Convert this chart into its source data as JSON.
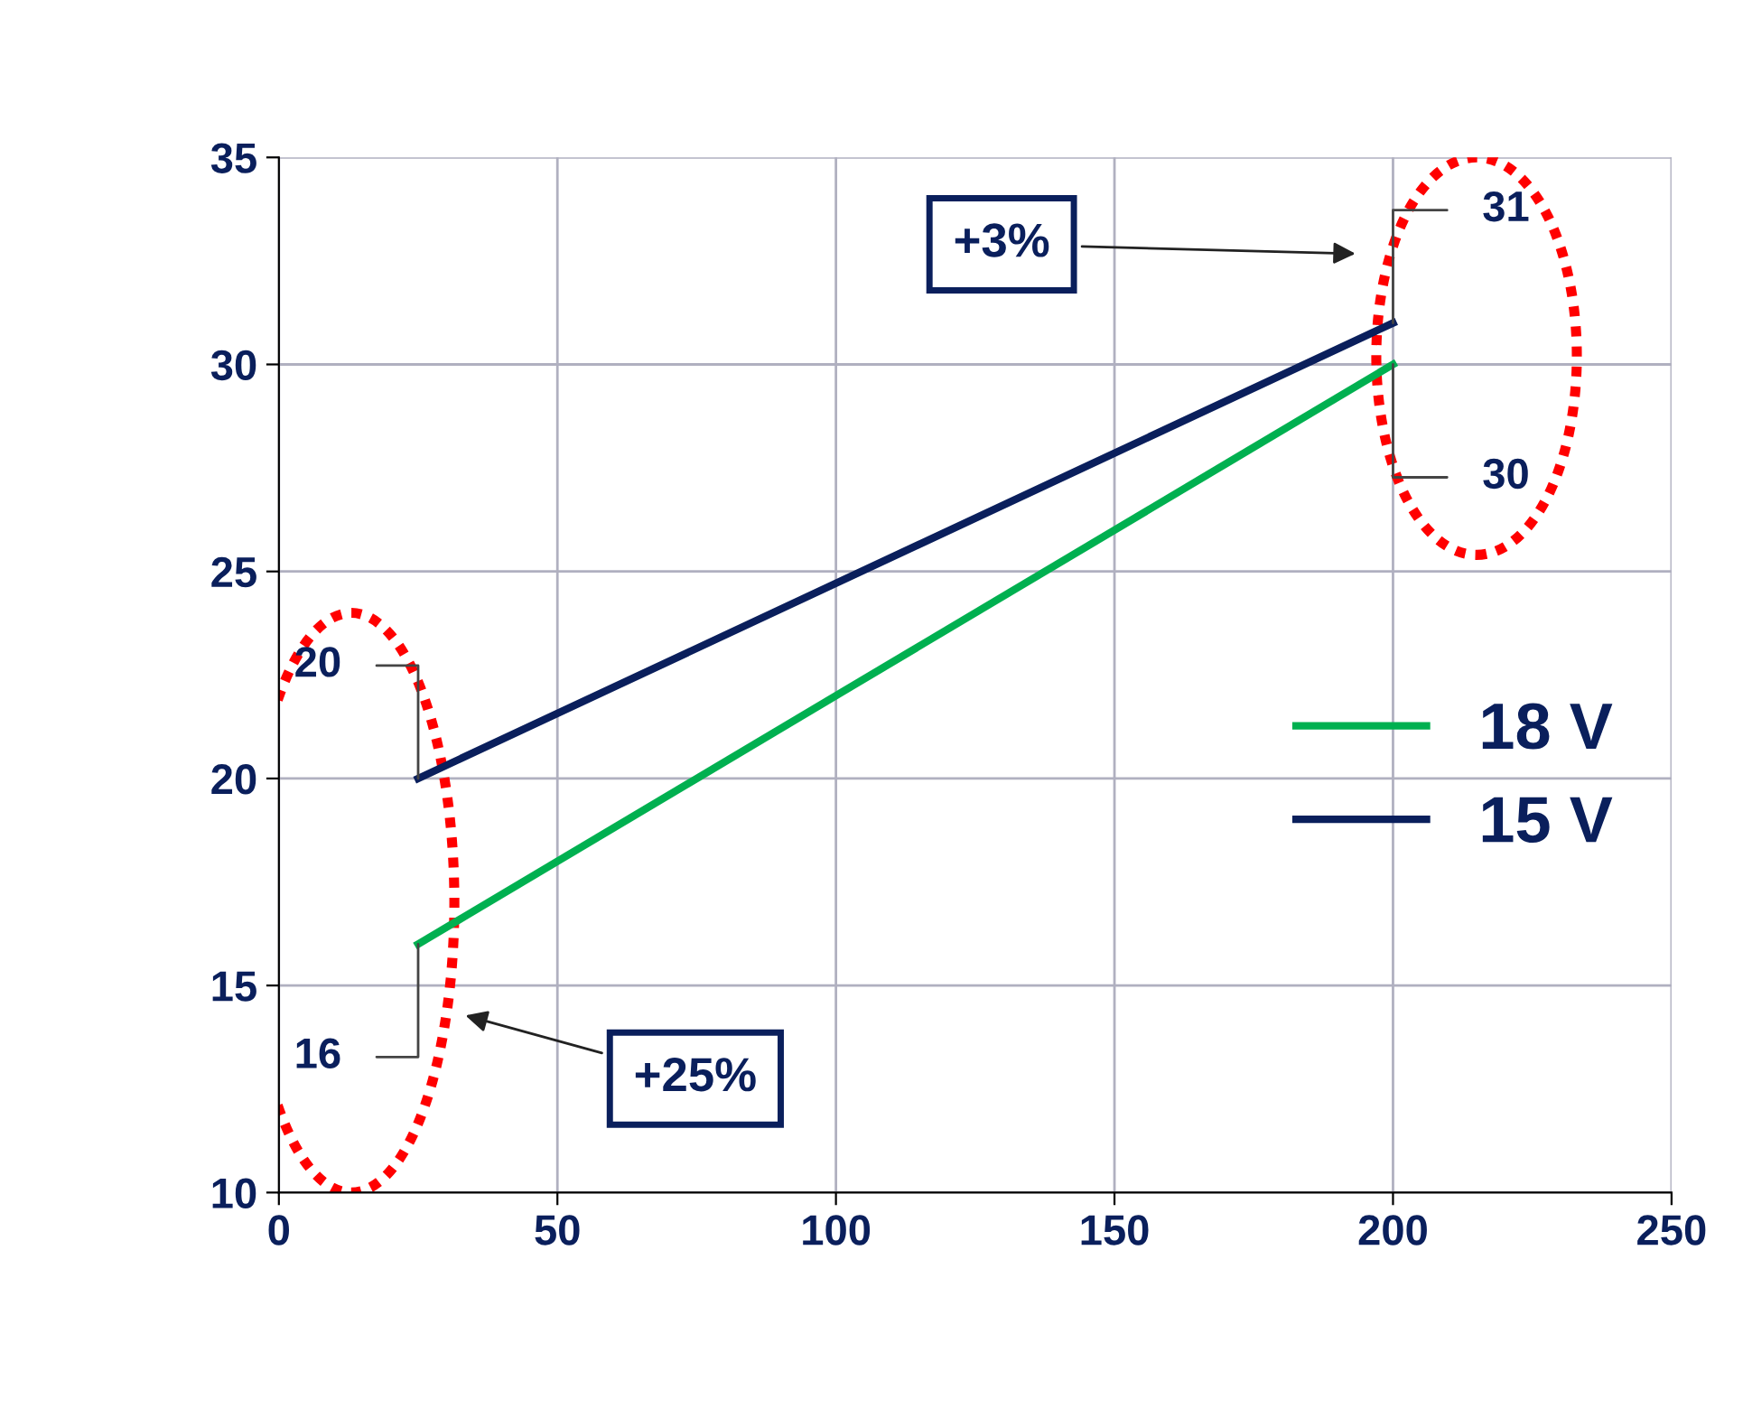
{
  "chart_data": {
    "type": "line",
    "x": [
      25,
      200
    ],
    "series": [
      {
        "name": "18 V",
        "color": "#00b050",
        "values": [
          16,
          30
        ]
      },
      {
        "name": "15 V",
        "color": "#0a1f5c",
        "values": [
          20,
          31
        ]
      }
    ],
    "xlim": [
      0,
      250
    ],
    "xticks": [
      0,
      50,
      100,
      150,
      200,
      250
    ],
    "ylim": [
      10,
      35
    ],
    "yticks": [
      10,
      15,
      20,
      25,
      30,
      35
    ],
    "grid": true,
    "legend": "right",
    "data_labels": true,
    "marker": "none",
    "line_style": "solid",
    "annotations": [
      "+3%",
      "+25%"
    ]
  }
}
